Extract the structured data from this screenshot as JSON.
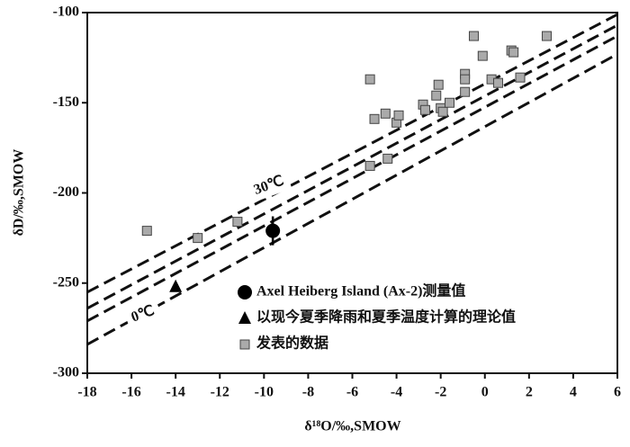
{
  "chart_data": {
    "type": "scatter",
    "xlabel": "δ¹⁸O/‰,SMOW",
    "ylabel": "δD/‰,SMOW",
    "xlim": [
      -18,
      6
    ],
    "xticks": [
      -18,
      -16,
      -14,
      -12,
      -10,
      -8,
      -6,
      -4,
      -2,
      0,
      2,
      4,
      6
    ],
    "ylim": [
      -300,
      -100
    ],
    "yticks": [
      -300,
      -250,
      -200,
      -150,
      -100
    ],
    "grid": false,
    "legend": "lower center",
    "series": [
      {
        "name": "Axel Heiberg Island (Ax-2)测量值",
        "marker": "circle",
        "color": "#000000",
        "x": [
          -9.6
        ],
        "values": [
          -221
        ],
        "yerr": [
          8
        ],
        "xerr": [
          0.3
        ]
      },
      {
        "name": "以现今夏季降雨和夏季温度计算的理论值",
        "marker": "triangle",
        "color": "#000000",
        "x": [
          -14
        ],
        "values": [
          -252
        ]
      },
      {
        "name": "发表的数据",
        "marker": "square",
        "color": "#aaaaaa",
        "x": [
          -15.3,
          -13.0,
          -11.2,
          -5.2,
          -5.0,
          -5.2,
          -4.5,
          -4.4,
          -4.0,
          -3.9,
          -2.8,
          -2.7,
          -2.1,
          -2.2,
          -2.0,
          -1.9,
          -1.6,
          -0.9,
          -0.9,
          -0.9,
          -0.5,
          -0.1,
          0.3,
          0.6,
          1.2,
          1.3,
          1.6,
          2.8
        ],
        "values": [
          -221,
          -225,
          -216,
          -137,
          -159,
          -185,
          -156,
          -181,
          -161,
          -157,
          -151,
          -154,
          -140,
          -146,
          -153,
          -155,
          -150,
          -134,
          -137,
          -144,
          -113,
          -124,
          -137,
          -139,
          -121,
          -122,
          -136,
          -113
        ]
      }
    ],
    "reference_lines": [
      {
        "x": [
          -18,
          6
        ],
        "values": [
          -255,
          -101
        ]
      },
      {
        "x": [
          -18,
          6
        ],
        "values": [
          -264,
          -107
        ]
      },
      {
        "x": [
          -18,
          6
        ],
        "values": [
          -271,
          -113
        ]
      },
      {
        "x": [
          -18,
          6
        ],
        "values": [
          -284,
          -123
        ]
      }
    ],
    "annotations": [
      "30℃",
      "0℃"
    ]
  }
}
